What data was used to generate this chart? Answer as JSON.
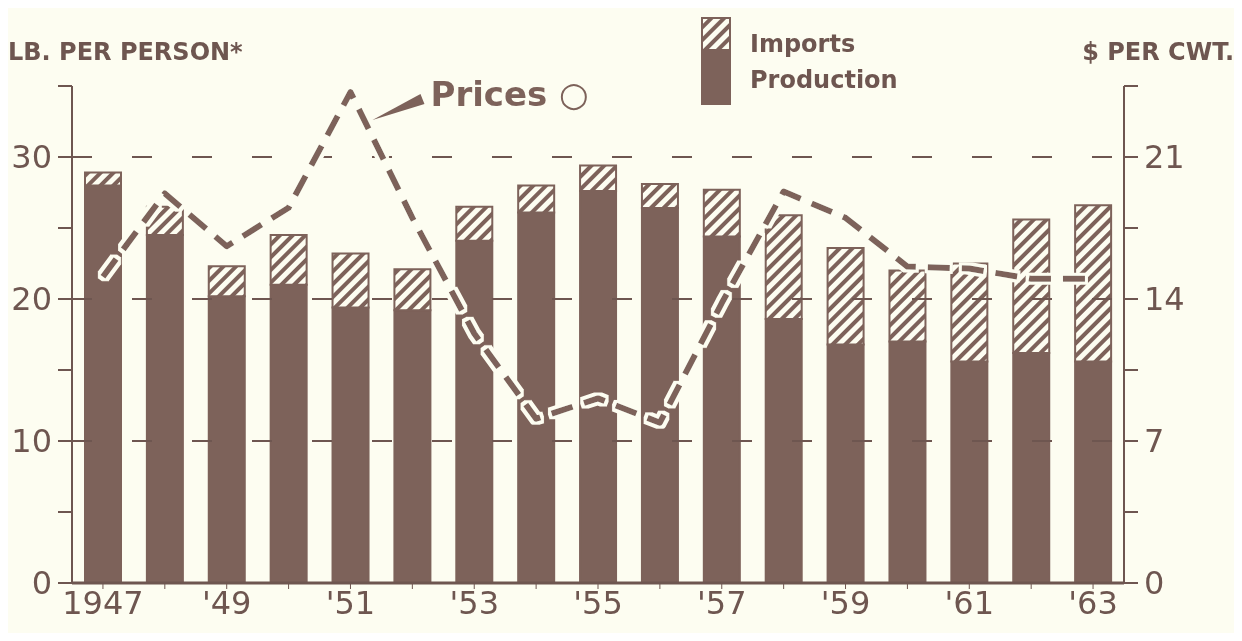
{
  "chart_data": {
    "type": "bar",
    "ylabel": "LB. PER PERSON*",
    "y2label": "$ PER CWT.",
    "categories": [
      "1947",
      null,
      "'49",
      null,
      "'51",
      null,
      "'53",
      null,
      "'55",
      null,
      "'57",
      null,
      "'59",
      null,
      "'61",
      null,
      "'63"
    ],
    "stacked": true,
    "series": [
      {
        "name": "Production",
        "color": "#7d625a",
        "values": [
          28.0,
          24.5,
          20.2,
          21.0,
          19.4,
          19.2,
          24.1,
          26.1,
          27.6,
          26.4,
          24.4,
          18.6,
          16.8,
          17.0,
          15.6,
          16.2,
          15.6
        ]
      },
      {
        "name": "Imports",
        "color": "#7d625a",
        "values": [
          0.9,
          2.0,
          2.1,
          3.5,
          3.8,
          2.9,
          2.4,
          1.9,
          1.8,
          1.7,
          3.3,
          7.3,
          6.8,
          5.0,
          6.9,
          9.4,
          11.0
        ]
      },
      {
        "name": "Prices ○",
        "type": "line",
        "axis": "y2",
        "color": "#7d625a",
        "line_style": "dashed",
        "marker": "none",
        "values": [
          15.1,
          19.2,
          16.6,
          18.5,
          24.2,
          18.0,
          12.3,
          8.1,
          9.1,
          7.9,
          13.8,
          19.3,
          18.0,
          15.6,
          15.5,
          15.0,
          15.0
        ]
      }
    ],
    "ylim": [
      0,
      35
    ],
    "yticks": [
      0,
      {
        "value": 5,
        "label": null
      },
      10,
      {
        "value": 15,
        "label": null
      },
      20,
      {
        "value": 25,
        "label": null
      },
      30,
      {
        "value": 35,
        "label": null
      }
    ],
    "y2lim": [
      0,
      24.5
    ],
    "y2ticks": [
      0,
      {
        "value": 3.5,
        "label": null
      },
      7,
      {
        "value": 10.5,
        "label": null
      },
      14,
      {
        "value": 17.5,
        "label": null
      },
      21,
      {
        "value": 24.5,
        "label": null
      }
    ],
    "grid": "y",
    "legend": "top"
  }
}
